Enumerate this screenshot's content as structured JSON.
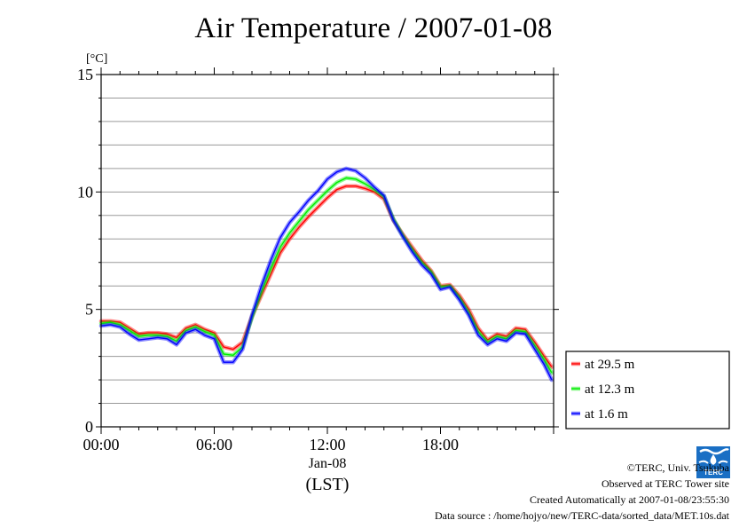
{
  "chart_data": {
    "type": "line",
    "title": "Air Temperature / 2007-01-08",
    "y_unit": "[°C]",
    "ylim": [
      0,
      15
    ],
    "y_ticks": [
      0,
      5,
      10,
      15
    ],
    "y_minor_step": 1,
    "xlim_hours": [
      0,
      24
    ],
    "x_ticks": [
      {
        "hour": 0,
        "label": "00:00"
      },
      {
        "hour": 6,
        "label": "06:00"
      },
      {
        "hour": 12,
        "label": "12:00"
      },
      {
        "hour": 18,
        "label": "18:00"
      }
    ],
    "x_date_label": "Jan-08",
    "x_timezone_label": "(LST)",
    "grid": "horizontal",
    "legend_position": "right-bottom, outside plot",
    "series": [
      {
        "name": "at 29.5 m",
        "color": "#ff0000",
        "x": [
          0,
          0.5,
          1,
          1.5,
          2,
          2.5,
          3,
          3.5,
          4,
          4.5,
          5,
          5.5,
          6,
          6.5,
          7,
          7.5,
          8,
          8.5,
          9,
          9.5,
          10,
          10.5,
          11,
          11.5,
          12,
          12.5,
          13,
          13.5,
          14,
          14.5,
          15,
          15.5,
          16,
          16.5,
          17,
          17.5,
          18,
          18.5,
          19,
          19.5,
          20,
          20.5,
          21,
          21.5,
          22,
          22.5,
          23,
          23.5,
          23.9
        ],
        "y": [
          4.5,
          4.5,
          4.45,
          4.2,
          3.95,
          4.0,
          4.0,
          3.95,
          3.8,
          4.2,
          4.35,
          4.15,
          4.0,
          3.4,
          3.3,
          3.6,
          4.7,
          5.6,
          6.5,
          7.4,
          8.0,
          8.5,
          8.95,
          9.35,
          9.75,
          10.1,
          10.25,
          10.25,
          10.15,
          10.0,
          9.7,
          8.8,
          8.2,
          7.65,
          7.1,
          6.65,
          6.0,
          6.05,
          5.6,
          5.0,
          4.2,
          3.7,
          3.95,
          3.85,
          4.2,
          4.15,
          3.6,
          3.0,
          2.55
        ]
      },
      {
        "name": "at 12.3 m",
        "color": "#00ee00",
        "x": [
          0,
          0.5,
          1,
          1.5,
          2,
          2.5,
          3,
          3.5,
          4,
          4.5,
          5,
          5.5,
          6,
          6.5,
          7,
          7.5,
          8,
          8.5,
          9,
          9.5,
          10,
          10.5,
          11,
          11.5,
          12,
          12.5,
          13,
          13.5,
          14,
          14.5,
          15,
          15.5,
          16,
          16.5,
          17,
          17.5,
          18,
          18.5,
          19,
          19.5,
          20,
          20.5,
          21,
          21.5,
          22,
          22.5,
          23,
          23.5,
          23.9
        ],
        "y": [
          4.4,
          4.45,
          4.35,
          4.1,
          3.85,
          3.9,
          3.9,
          3.85,
          3.65,
          4.1,
          4.25,
          4.05,
          3.9,
          3.1,
          3.05,
          3.4,
          4.65,
          5.75,
          6.75,
          7.65,
          8.25,
          8.75,
          9.25,
          9.65,
          10.05,
          10.4,
          10.6,
          10.55,
          10.35,
          10.1,
          9.8,
          8.85,
          8.15,
          7.55,
          7.0,
          6.6,
          5.95,
          6.0,
          5.5,
          4.85,
          4.05,
          3.6,
          3.85,
          3.75,
          4.1,
          4.05,
          3.45,
          2.85,
          2.3
        ]
      },
      {
        "name": "at 1.6 m",
        "color": "#0000ff",
        "x": [
          0,
          0.5,
          1,
          1.5,
          2,
          2.5,
          3,
          3.5,
          4,
          4.5,
          5,
          5.5,
          6,
          6.5,
          7,
          7.5,
          8,
          8.5,
          9,
          9.5,
          10,
          10.5,
          11,
          11.5,
          12,
          12.5,
          13,
          13.5,
          14,
          14.5,
          15,
          15.5,
          16,
          16.5,
          17,
          17.5,
          18,
          18.5,
          19,
          19.5,
          20,
          20.5,
          21,
          21.5,
          22,
          22.5,
          23,
          23.5,
          23.9
        ],
        "y": [
          4.3,
          4.35,
          4.25,
          3.95,
          3.7,
          3.75,
          3.8,
          3.75,
          3.5,
          4.0,
          4.15,
          3.9,
          3.75,
          2.75,
          2.75,
          3.3,
          4.75,
          6.0,
          7.1,
          8.05,
          8.7,
          9.15,
          9.65,
          10.05,
          10.55,
          10.85,
          11.0,
          10.9,
          10.6,
          10.2,
          9.85,
          8.8,
          8.1,
          7.45,
          6.9,
          6.5,
          5.85,
          5.95,
          5.4,
          4.75,
          3.9,
          3.5,
          3.75,
          3.65,
          4.0,
          3.95,
          3.3,
          2.65,
          2.0
        ]
      }
    ]
  },
  "footer": {
    "copyright": "©TERC, Univ. Tsukuba",
    "observed": "Observed at TERC Tower site",
    "created": "Created Automatically at 2007-01-08/23:55:30",
    "source": "Data source : /home/hojyo/new/TERC-data/sorted_data/MET.10s.dat"
  },
  "logo": {
    "name": "terc-logo",
    "text": "TERC",
    "color": "#1a6fc4"
  }
}
